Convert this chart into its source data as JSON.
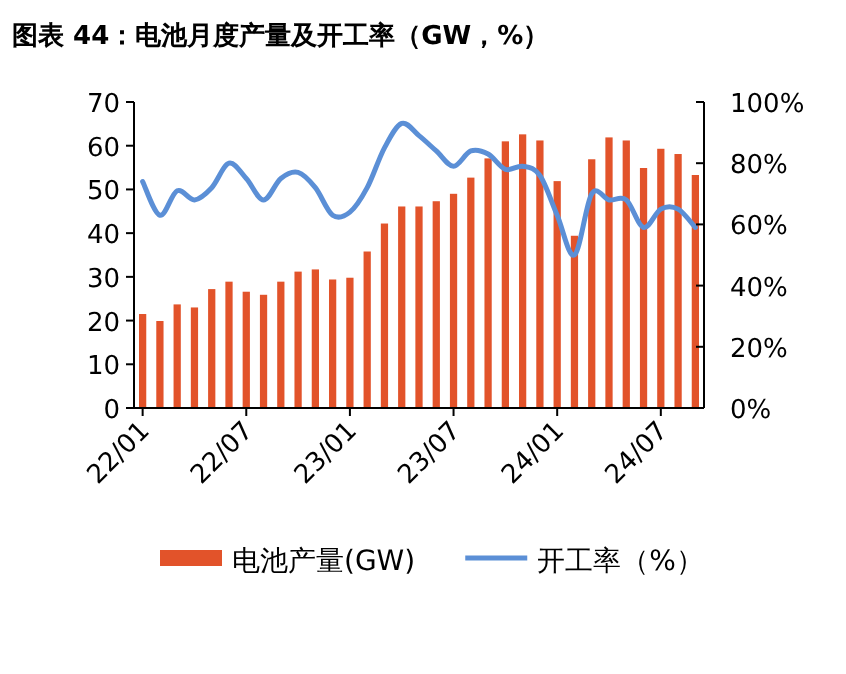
{
  "chart_data": {
    "type": "bar",
    "title": "图表 44：电池月度产量及开工率（GW，%）",
    "categories": [
      "22/01",
      null,
      null,
      null,
      null,
      null,
      "22/07",
      null,
      null,
      null,
      null,
      null,
      "23/01",
      null,
      null,
      null,
      null,
      null,
      "23/07",
      null,
      null,
      null,
      null,
      null,
      "24/01",
      null,
      null,
      null,
      null,
      null,
      "24/07",
      null,
      null
    ],
    "ylim": [
      0,
      70
    ],
    "yticks": [
      0,
      10,
      20,
      30,
      40,
      50,
      60,
      70
    ],
    "y2lim": [
      0,
      100
    ],
    "y2ticks": [
      {
        "value": 0,
        "label": "0%"
      },
      {
        "value": 20,
        "label": "20%"
      },
      {
        "value": 40,
        "label": "40%"
      },
      {
        "value": 60,
        "label": "60%"
      },
      {
        "value": 80,
        "label": "80%"
      },
      {
        "value": 100,
        "label": "100%"
      }
    ],
    "legend": "bottom",
    "grid": false,
    "series": [
      {
        "name": "电池产量(GW)",
        "color": "#e2532a",
        "values": [
          21.5,
          19.9,
          23.7,
          23.0,
          27.2,
          28.9,
          26.6,
          25.9,
          28.9,
          31.2,
          31.7,
          29.4,
          29.8,
          35.8,
          42.2,
          46.1,
          46.1,
          47.3,
          49.0,
          52.7,
          57.1,
          61.0,
          62.6,
          61.2,
          51.9,
          39.4,
          56.9,
          61.9,
          61.2,
          54.9,
          59.3,
          58.1,
          53.3
        ]
      },
      {
        "name": "开工率（%）",
        "type": "line",
        "axis": "y2",
        "color": "#5b8fd6",
        "values": [
          74,
          63,
          71,
          68,
          72,
          80,
          75,
          68,
          75,
          77,
          72,
          63,
          64,
          72,
          85,
          93,
          89,
          84,
          79,
          84,
          83,
          78,
          79,
          76,
          63,
          50,
          70,
          68,
          68,
          59,
          65,
          65,
          59
        ]
      }
    ]
  }
}
